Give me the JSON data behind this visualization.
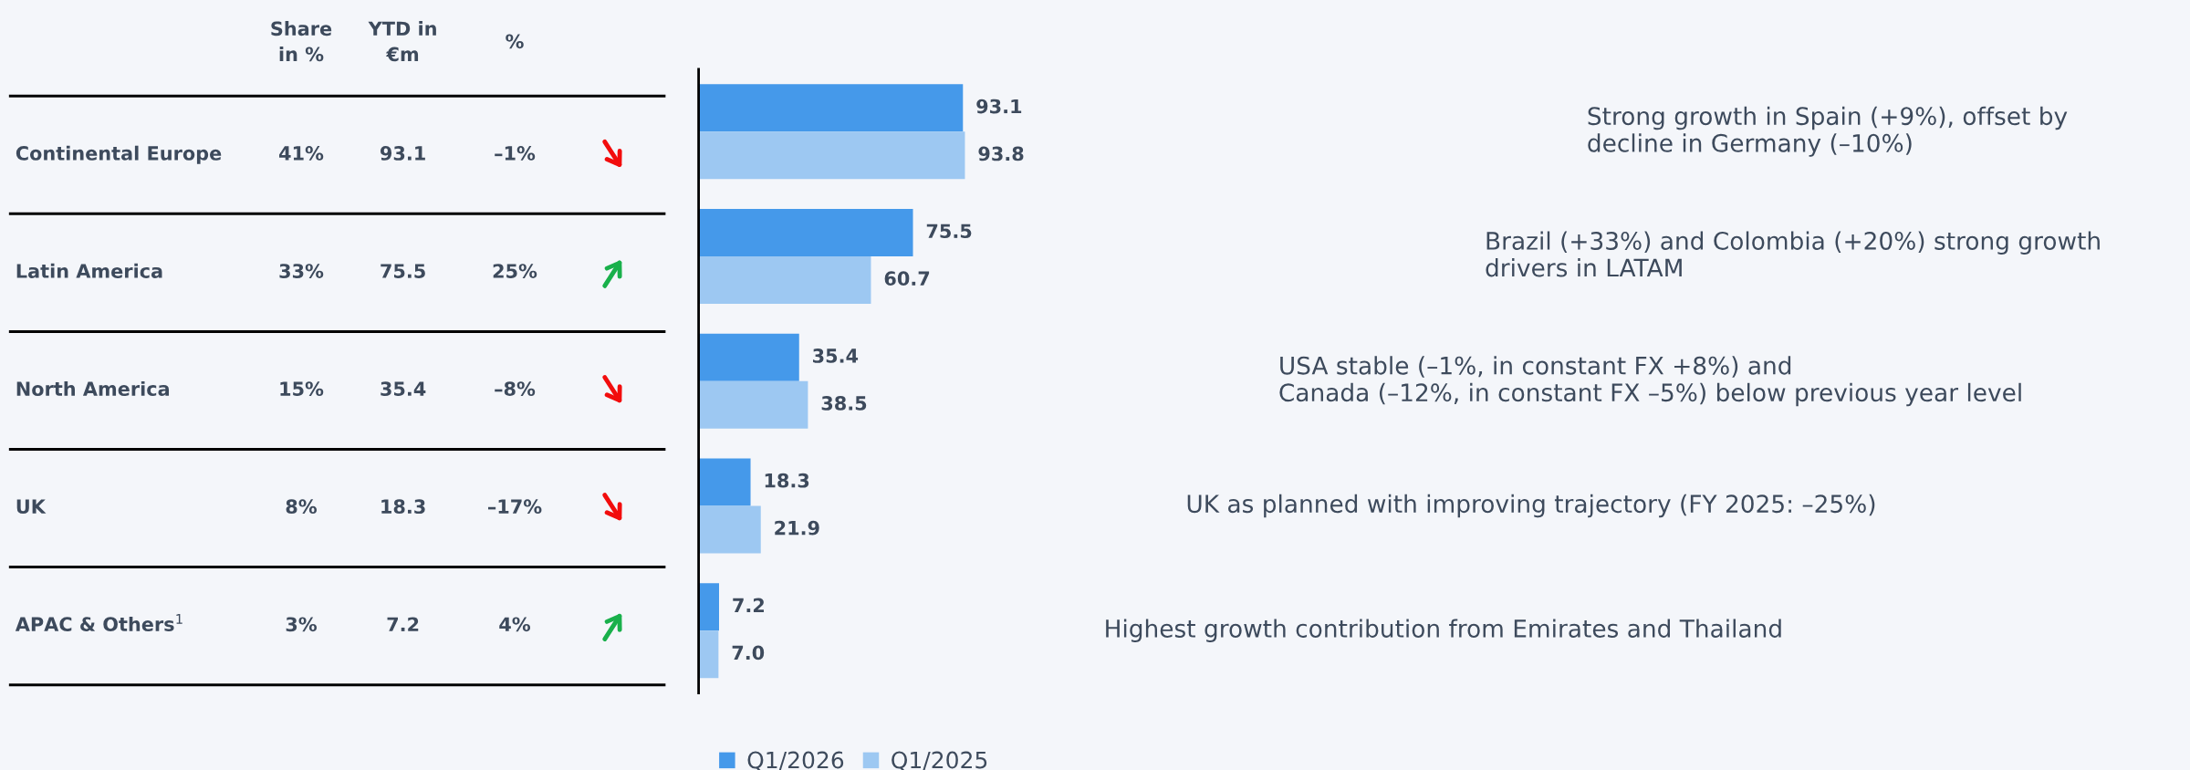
{
  "chart_data": [
    {
      "type": "other",
      "categories": [
        "Continental Europe",
        "Latin America",
        "North America",
        "UK",
        "APAC & Others$^{1}$"
      ],
      "series": [
        {
          "name": "Share\nin %",
          "values": [
            41,
            33,
            15,
            8,
            3
          ],
          "value_labels": [
            "41%",
            "33%",
            "15%",
            "8%",
            "3%"
          ]
        },
        {
          "name": "YTD in\n€m",
          "values": [
            93.1,
            75.5,
            35.4,
            18.3,
            7.2
          ],
          "value_labels": [
            "93.1",
            "75.5",
            "35.4",
            "18.3",
            "7.2"
          ]
        },
        {
          "name": "%",
          "values": [
            -1,
            25,
            -8,
            -17,
            4
          ],
          "value_labels": [
            "–1%",
            "25%",
            "–8%",
            "–17%",
            "4%"
          ],
          "colors": [
            "#f20d0d",
            "#19b04b",
            "#f20d0d",
            "#f20d0d",
            "#19b04b"
          ]
        }
      ]
    },
    {
      "type": "bar",
      "orientation": "horizontal",
      "categories": [
        null,
        null,
        null,
        null,
        null
      ],
      "legend": "bottom",
      "series": [
        {
          "name": "Q1/2026",
          "color": "#4599ea",
          "values": [
            93.1,
            75.5,
            35.4,
            18.3,
            7.2
          ],
          "value_labels": [
            "93.1",
            "75.5",
            "35.4",
            "18.3",
            "7.2"
          ]
        },
        {
          "name": "Q1/2025",
          "color": "#9dc8f2",
          "values": [
            93.8,
            60.7,
            38.5,
            21.9,
            7.0
          ],
          "value_labels": [
            "93.8",
            "60.7",
            "38.5",
            "21.9",
            "7.0"
          ]
        }
      ],
      "annotations": [
        "Strong growth in Spain (+9%), offset by\ndecline in Germany (–10%)",
        "Brazil (+33%) and Colombia (+20%) strong growth\ndrivers in LATAM",
        "USA stable (–1%, in constant FX +8%) and\nCanada (–12%, in constant FX –5%) below previous year level",
        "UK as planned with improving trajectory (FY 2025: –25%)",
        "Highest growth contribution from Emirates and Thailand"
      ]
    }
  ]
}
